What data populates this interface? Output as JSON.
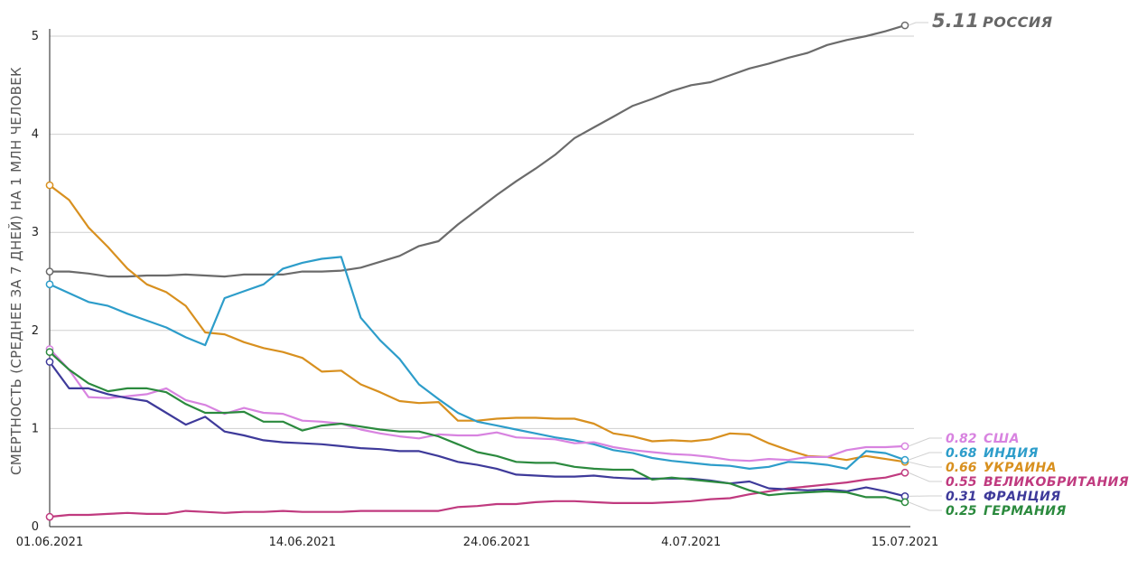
{
  "chart_data": {
    "type": "line",
    "title": "",
    "ylabel": "СМЕРТНОСТЬ (СРЕДНЕЕ ЗА 7 ДНЕЙ) НА 1 МЛН ЧЕЛОВЕК",
    "xlabel": "",
    "ylim": [
      0,
      5
    ],
    "yticks": [
      0,
      1,
      2,
      3,
      4,
      5
    ],
    "xlim": [
      0,
      44
    ],
    "xticks": [
      {
        "x": 0,
        "label": "01.06.2021"
      },
      {
        "x": 13,
        "label": "14.06.2021"
      },
      {
        "x": 23,
        "label": "24.06.2021"
      },
      {
        "x": 33,
        "label": "4.07.2021"
      },
      {
        "x": 44,
        "label": "15.07.2021"
      }
    ],
    "grid": true,
    "series": [
      {
        "name": "РОССИЯ",
        "label_value": "5.11",
        "color": "#6b6b6b",
        "values": [
          2.6,
          2.6,
          2.58,
          2.55,
          2.55,
          2.56,
          2.56,
          2.57,
          2.56,
          2.55,
          2.57,
          2.57,
          2.57,
          2.6,
          2.6,
          2.61,
          2.64,
          2.7,
          2.76,
          2.86,
          2.91,
          3.08,
          3.23,
          3.38,
          3.52,
          3.65,
          3.79,
          3.96,
          4.07,
          4.18,
          4.29,
          4.36,
          4.44,
          4.5,
          4.53,
          4.6,
          4.67,
          4.72,
          4.78,
          4.83,
          4.91,
          4.96,
          5.0,
          5.05,
          5.11
        ]
      },
      {
        "name": "УКРАИНА",
        "label_value": "0.66",
        "color": "#d8901f",
        "values": [
          3.48,
          3.33,
          3.05,
          2.85,
          2.63,
          2.47,
          2.39,
          2.25,
          1.98,
          1.96,
          1.88,
          1.82,
          1.78,
          1.72,
          1.58,
          1.59,
          1.45,
          1.37,
          1.28,
          1.26,
          1.27,
          1.08,
          1.08,
          1.1,
          1.11,
          1.11,
          1.1,
          1.1,
          1.05,
          0.95,
          0.92,
          0.87,
          0.88,
          0.87,
          0.89,
          0.95,
          0.94,
          0.85,
          0.78,
          0.72,
          0.71,
          0.68,
          0.72,
          0.69,
          0.66
        ]
      },
      {
        "name": "ИНДИЯ",
        "label_value": "0.68",
        "color": "#2d9dca",
        "values": [
          2.47,
          2.38,
          2.29,
          2.25,
          2.17,
          2.1,
          2.03,
          1.93,
          1.85,
          2.33,
          2.4,
          2.47,
          2.63,
          2.69,
          2.73,
          2.75,
          2.13,
          1.9,
          1.71,
          1.45,
          1.3,
          1.16,
          1.07,
          1.03,
          0.99,
          0.95,
          0.91,
          0.88,
          0.84,
          0.78,
          0.75,
          0.7,
          0.67,
          0.65,
          0.63,
          0.62,
          0.59,
          0.61,
          0.66,
          0.65,
          0.63,
          0.59,
          0.77,
          0.75,
          0.68
        ]
      },
      {
        "name": "США",
        "label_value": "0.82",
        "color": "#d883e0",
        "values": [
          1.81,
          1.6,
          1.32,
          1.31,
          1.33,
          1.35,
          1.41,
          1.29,
          1.24,
          1.15,
          1.21,
          1.16,
          1.15,
          1.08,
          1.07,
          1.05,
          0.99,
          0.95,
          0.92,
          0.9,
          0.94,
          0.93,
          0.93,
          0.96,
          0.91,
          0.9,
          0.89,
          0.85,
          0.86,
          0.81,
          0.78,
          0.76,
          0.74,
          0.73,
          0.71,
          0.68,
          0.67,
          0.69,
          0.68,
          0.71,
          0.71,
          0.78,
          0.81,
          0.81,
          0.82
        ]
      },
      {
        "name": "ВЕЛИКОБРИТАНИЯ",
        "label_value": "0.55",
        "color": "#c03a7f",
        "values": [
          0.1,
          0.12,
          0.12,
          0.13,
          0.14,
          0.13,
          0.13,
          0.16,
          0.15,
          0.14,
          0.15,
          0.15,
          0.16,
          0.15,
          0.15,
          0.15,
          0.16,
          0.16,
          0.16,
          0.16,
          0.16,
          0.2,
          0.21,
          0.23,
          0.23,
          0.25,
          0.26,
          0.26,
          0.25,
          0.24,
          0.24,
          0.24,
          0.25,
          0.26,
          0.28,
          0.29,
          0.33,
          0.36,
          0.39,
          0.41,
          0.43,
          0.45,
          0.48,
          0.5,
          0.55
        ]
      },
      {
        "name": "ФРАНЦИЯ",
        "label_value": "0.31",
        "color": "#3e3a9a",
        "values": [
          1.68,
          1.41,
          1.41,
          1.35,
          1.31,
          1.28,
          1.16,
          1.04,
          1.12,
          0.97,
          0.93,
          0.88,
          0.86,
          0.85,
          0.84,
          0.82,
          0.8,
          0.79,
          0.77,
          0.77,
          0.72,
          0.66,
          0.63,
          0.59,
          0.53,
          0.52,
          0.51,
          0.51,
          0.52,
          0.5,
          0.49,
          0.49,
          0.49,
          0.49,
          0.47,
          0.44,
          0.46,
          0.39,
          0.38,
          0.37,
          0.38,
          0.36,
          0.4,
          0.36,
          0.31
        ]
      },
      {
        "name": "ГЕРМАНИЯ",
        "label_value": "0.25",
        "color": "#2b8a3e",
        "values": [
          1.78,
          1.6,
          1.46,
          1.38,
          1.41,
          1.41,
          1.37,
          1.25,
          1.16,
          1.16,
          1.17,
          1.07,
          1.07,
          0.98,
          1.03,
          1.05,
          1.02,
          0.99,
          0.97,
          0.97,
          0.92,
          0.84,
          0.76,
          0.72,
          0.66,
          0.65,
          0.65,
          0.61,
          0.59,
          0.58,
          0.58,
          0.48,
          0.5,
          0.48,
          0.46,
          0.44,
          0.37,
          0.32,
          0.34,
          0.35,
          0.36,
          0.35,
          0.3,
          0.3,
          0.25
        ]
      }
    ]
  }
}
